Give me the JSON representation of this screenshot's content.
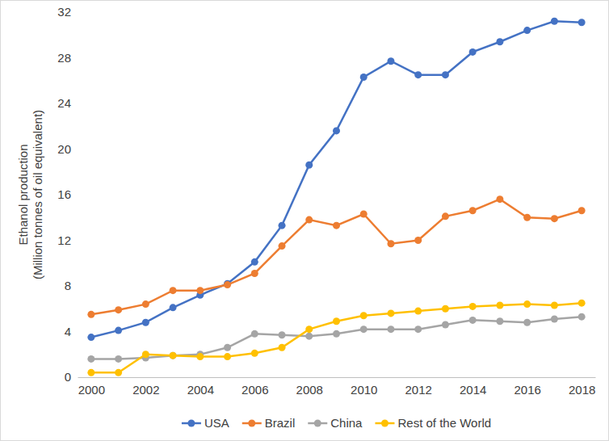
{
  "chart_data": {
    "type": "line",
    "ylabel": [
      "Ethanol production",
      "(Million tonnes of oil equivalent)"
    ],
    "x": [
      2000,
      2001,
      2002,
      2003,
      2004,
      2005,
      2006,
      2007,
      2008,
      2009,
      2010,
      2011,
      2012,
      2013,
      2014,
      2015,
      2016,
      2017,
      2018
    ],
    "xlim": [
      1999.5,
      2018.5
    ],
    "xticks": [
      2000,
      2002,
      2004,
      2006,
      2008,
      2010,
      2012,
      2014,
      2016,
      2018
    ],
    "ylim": [
      0,
      32
    ],
    "yticks": [
      0,
      4,
      8,
      12,
      16,
      20,
      24,
      28,
      32
    ],
    "grid": false,
    "legend": "bottom",
    "marker": "circle",
    "line_style": "solid",
    "series": [
      {
        "name": "USA",
        "color": "#4472c4",
        "values": [
          3.5,
          4.1,
          4.8,
          6.1,
          7.2,
          8.2,
          10.1,
          13.3,
          18.6,
          21.6,
          26.3,
          27.7,
          26.5,
          26.5,
          28.5,
          29.4,
          30.4,
          31.2,
          31.1
        ]
      },
      {
        "name": "Brazil",
        "color": "#ed7d31",
        "values": [
          5.5,
          5.9,
          6.4,
          7.6,
          7.6,
          8.1,
          9.1,
          11.5,
          13.8,
          13.3,
          14.3,
          11.7,
          12.0,
          14.1,
          14.6,
          15.6,
          14.0,
          13.9,
          14.6
        ]
      },
      {
        "name": "China",
        "color": "#a5a5a5",
        "values": [
          1.6,
          1.6,
          1.7,
          1.9,
          2.0,
          2.6,
          3.8,
          3.7,
          3.6,
          3.8,
          4.2,
          4.2,
          4.2,
          4.6,
          5.0,
          4.9,
          4.8,
          5.1,
          5.3
        ]
      },
      {
        "name": "Rest of the World",
        "color": "#ffc000",
        "values": [
          0.4,
          0.4,
          2.0,
          1.9,
          1.8,
          1.8,
          2.1,
          2.6,
          4.2,
          4.9,
          5.4,
          5.6,
          5.8,
          6.0,
          6.2,
          6.3,
          6.4,
          6.3,
          6.5
        ]
      }
    ]
  }
}
